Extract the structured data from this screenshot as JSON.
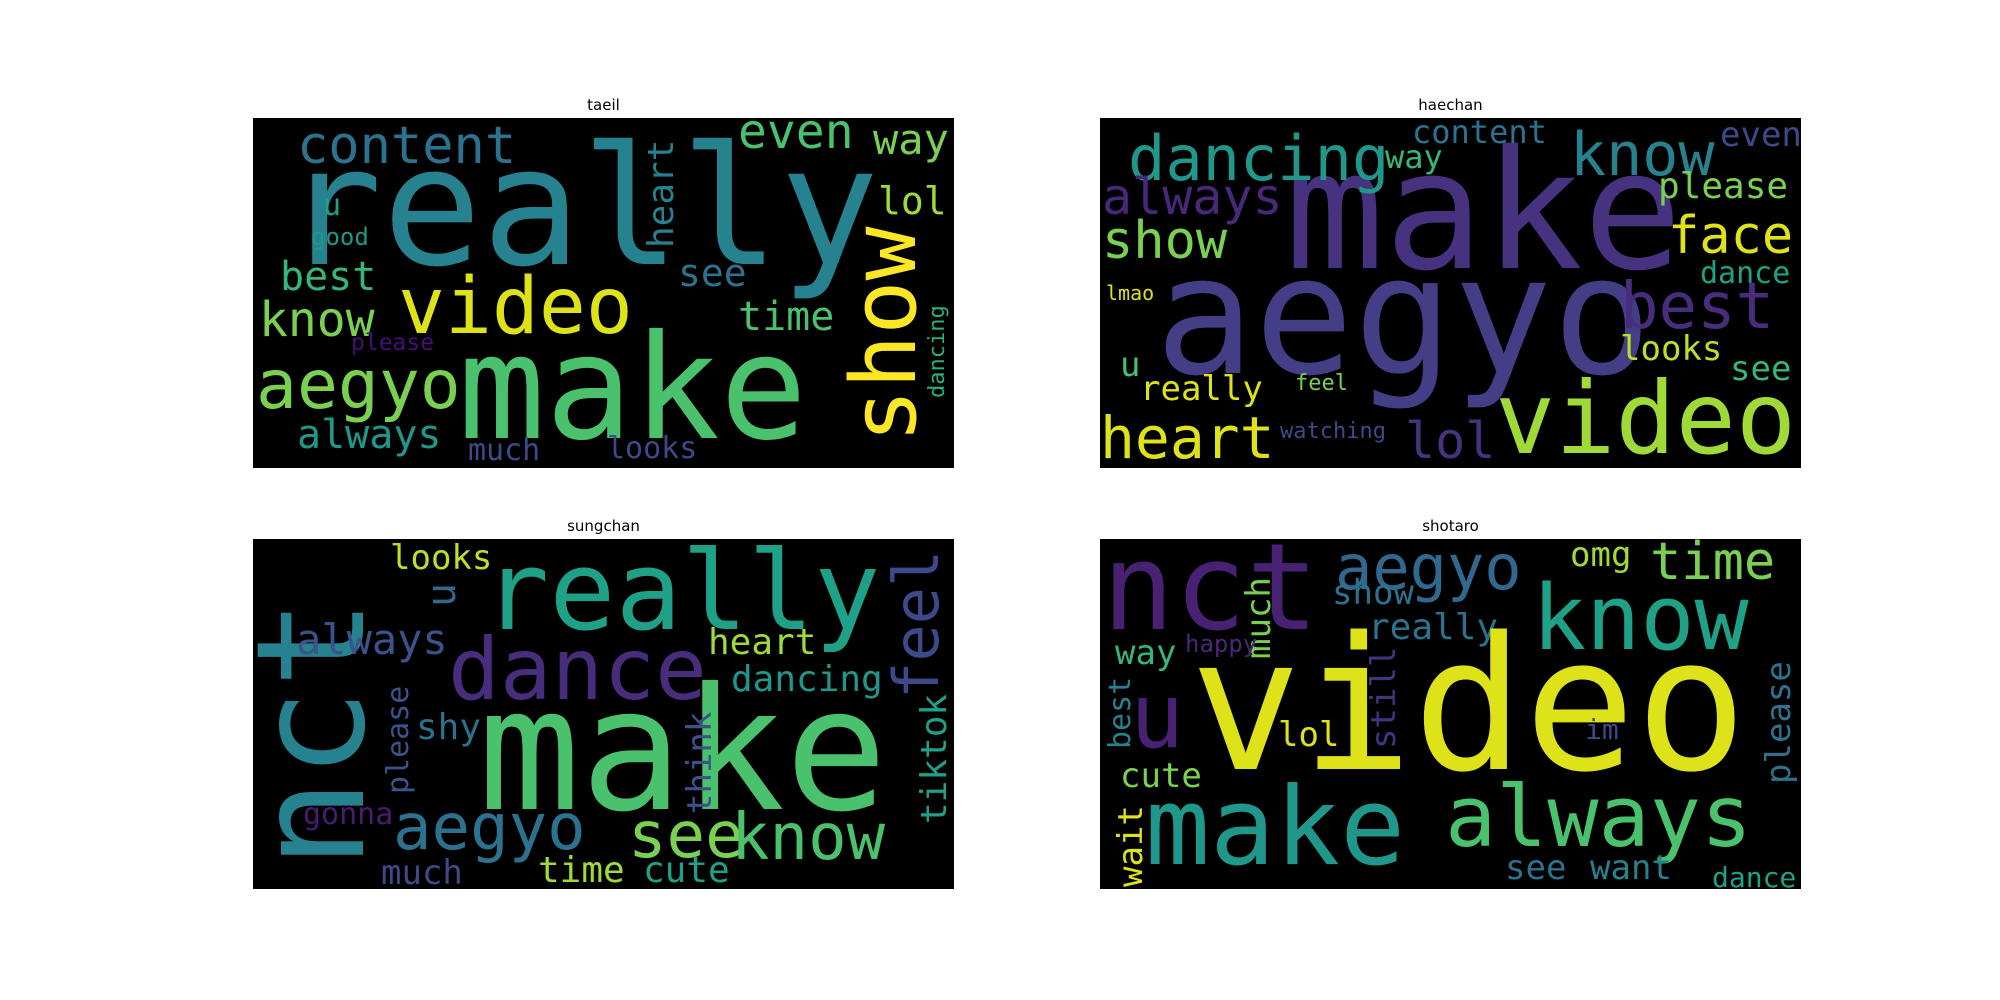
{
  "clouds": [
    {
      "title": "taeil",
      "words": [
        {
          "text": "really",
          "color": "#26828e"
        },
        {
          "text": "make",
          "color": "#4ac16d"
        },
        {
          "text": "video",
          "color": "#dde318"
        },
        {
          "text": "show",
          "color": "#fde725"
        },
        {
          "text": "content",
          "color": "#2c728e"
        },
        {
          "text": "even",
          "color": "#4ac16d"
        },
        {
          "text": "way",
          "color": "#7ad151"
        },
        {
          "text": "heart",
          "color": "#26828e"
        },
        {
          "text": "lol",
          "color": "#a0da39"
        },
        {
          "text": "u",
          "color": "#1fa187"
        },
        {
          "text": "good",
          "color": "#1f988b"
        },
        {
          "text": "best",
          "color": "#35b779"
        },
        {
          "text": "see",
          "color": "#2c728e"
        },
        {
          "text": "know",
          "color": "#7ad151"
        },
        {
          "text": "time",
          "color": "#4ac16d"
        },
        {
          "text": "dancing",
          "color": "#2ab07f"
        },
        {
          "text": "please",
          "color": "#440f76"
        },
        {
          "text": "aegyo",
          "color": "#7ad151"
        },
        {
          "text": "always",
          "color": "#1f988b"
        },
        {
          "text": "much",
          "color": "#3e4989"
        },
        {
          "text": "looks",
          "color": "#3e4989"
        }
      ]
    },
    {
      "title": "haechan",
      "words": [
        {
          "text": "make",
          "color": "#46327e"
        },
        {
          "text": "aegyo",
          "color": "#433e85"
        },
        {
          "text": "video",
          "color": "#a0da39"
        },
        {
          "text": "dancing",
          "color": "#1f988b"
        },
        {
          "text": "content",
          "color": "#2c728e"
        },
        {
          "text": "know",
          "color": "#26828e"
        },
        {
          "text": "even",
          "color": "#3e4989"
        },
        {
          "text": "way",
          "color": "#35b779"
        },
        {
          "text": "always",
          "color": "#482878"
        },
        {
          "text": "please",
          "color": "#7ad151"
        },
        {
          "text": "show",
          "color": "#7ad151"
        },
        {
          "text": "face",
          "color": "#dde318"
        },
        {
          "text": "dance",
          "color": "#1fa187"
        },
        {
          "text": "best",
          "color": "#472d7b"
        },
        {
          "text": "lmao",
          "color": "#dde318"
        },
        {
          "text": "u",
          "color": "#4ac16d"
        },
        {
          "text": "looks",
          "color": "#bddf26"
        },
        {
          "text": "really",
          "color": "#dde318"
        },
        {
          "text": "feel",
          "color": "#7ad151"
        },
        {
          "text": "see",
          "color": "#35b779"
        },
        {
          "text": "heart",
          "color": "#dde318"
        },
        {
          "text": "watching",
          "color": "#3e4989"
        },
        {
          "text": "lol",
          "color": "#46327e"
        }
      ]
    },
    {
      "title": "sungchan",
      "words": [
        {
          "text": "nct",
          "color": "#26828e"
        },
        {
          "text": "really",
          "color": "#1fa187"
        },
        {
          "text": "make",
          "color": "#4ac16d"
        },
        {
          "text": "dance",
          "color": "#472d7b"
        },
        {
          "text": "feel",
          "color": "#3e4989"
        },
        {
          "text": "looks",
          "color": "#bddf26"
        },
        {
          "text": "u",
          "color": "#31688e"
        },
        {
          "text": "always",
          "color": "#3b528b"
        },
        {
          "text": "heart",
          "color": "#a0da39"
        },
        {
          "text": "dancing",
          "color": "#1f988b"
        },
        {
          "text": "please",
          "color": "#3b528b"
        },
        {
          "text": "shy",
          "color": "#2c728e"
        },
        {
          "text": "think",
          "color": "#3b528b"
        },
        {
          "text": "tiktok",
          "color": "#1fa187"
        },
        {
          "text": "gonna",
          "color": "#481c6e"
        },
        {
          "text": "aegyo",
          "color": "#2c728e"
        },
        {
          "text": "see",
          "color": "#7ad151"
        },
        {
          "text": "know",
          "color": "#4ac16d"
        },
        {
          "text": "much",
          "color": "#3e4989"
        },
        {
          "text": "time",
          "color": "#a0da39"
        },
        {
          "text": "cute",
          "color": "#1fa187"
        }
      ]
    },
    {
      "title": "shotaro",
      "words": [
        {
          "text": "nct",
          "color": "#482173"
        },
        {
          "text": "aegyo",
          "color": "#31688e"
        },
        {
          "text": "omg",
          "color": "#a0da39"
        },
        {
          "text": "time",
          "color": "#7ad151"
        },
        {
          "text": "show",
          "color": "#2c728e"
        },
        {
          "text": "know",
          "color": "#1fa187"
        },
        {
          "text": "much",
          "color": "#7ad151"
        },
        {
          "text": "really",
          "color": "#2c728e"
        },
        {
          "text": "way",
          "color": "#35b779"
        },
        {
          "text": "happy",
          "color": "#482878"
        },
        {
          "text": "still",
          "color": "#46327e"
        },
        {
          "text": "video",
          "color": "#dde318"
        },
        {
          "text": "please",
          "color": "#2c728e"
        },
        {
          "text": "best",
          "color": "#26828e"
        },
        {
          "text": "u",
          "color": "#482173"
        },
        {
          "text": "lol",
          "color": "#dde318"
        },
        {
          "text": "im",
          "color": "#3e4989"
        },
        {
          "text": "cute",
          "color": "#7ad151"
        },
        {
          "text": "wait",
          "color": "#dde318"
        },
        {
          "text": "make",
          "color": "#1f988b"
        },
        {
          "text": "always",
          "color": "#4ac16d"
        },
        {
          "text": "see",
          "color": "#2c728e"
        },
        {
          "text": "want",
          "color": "#26828e"
        },
        {
          "text": "dance",
          "color": "#1fa187"
        }
      ]
    }
  ]
}
